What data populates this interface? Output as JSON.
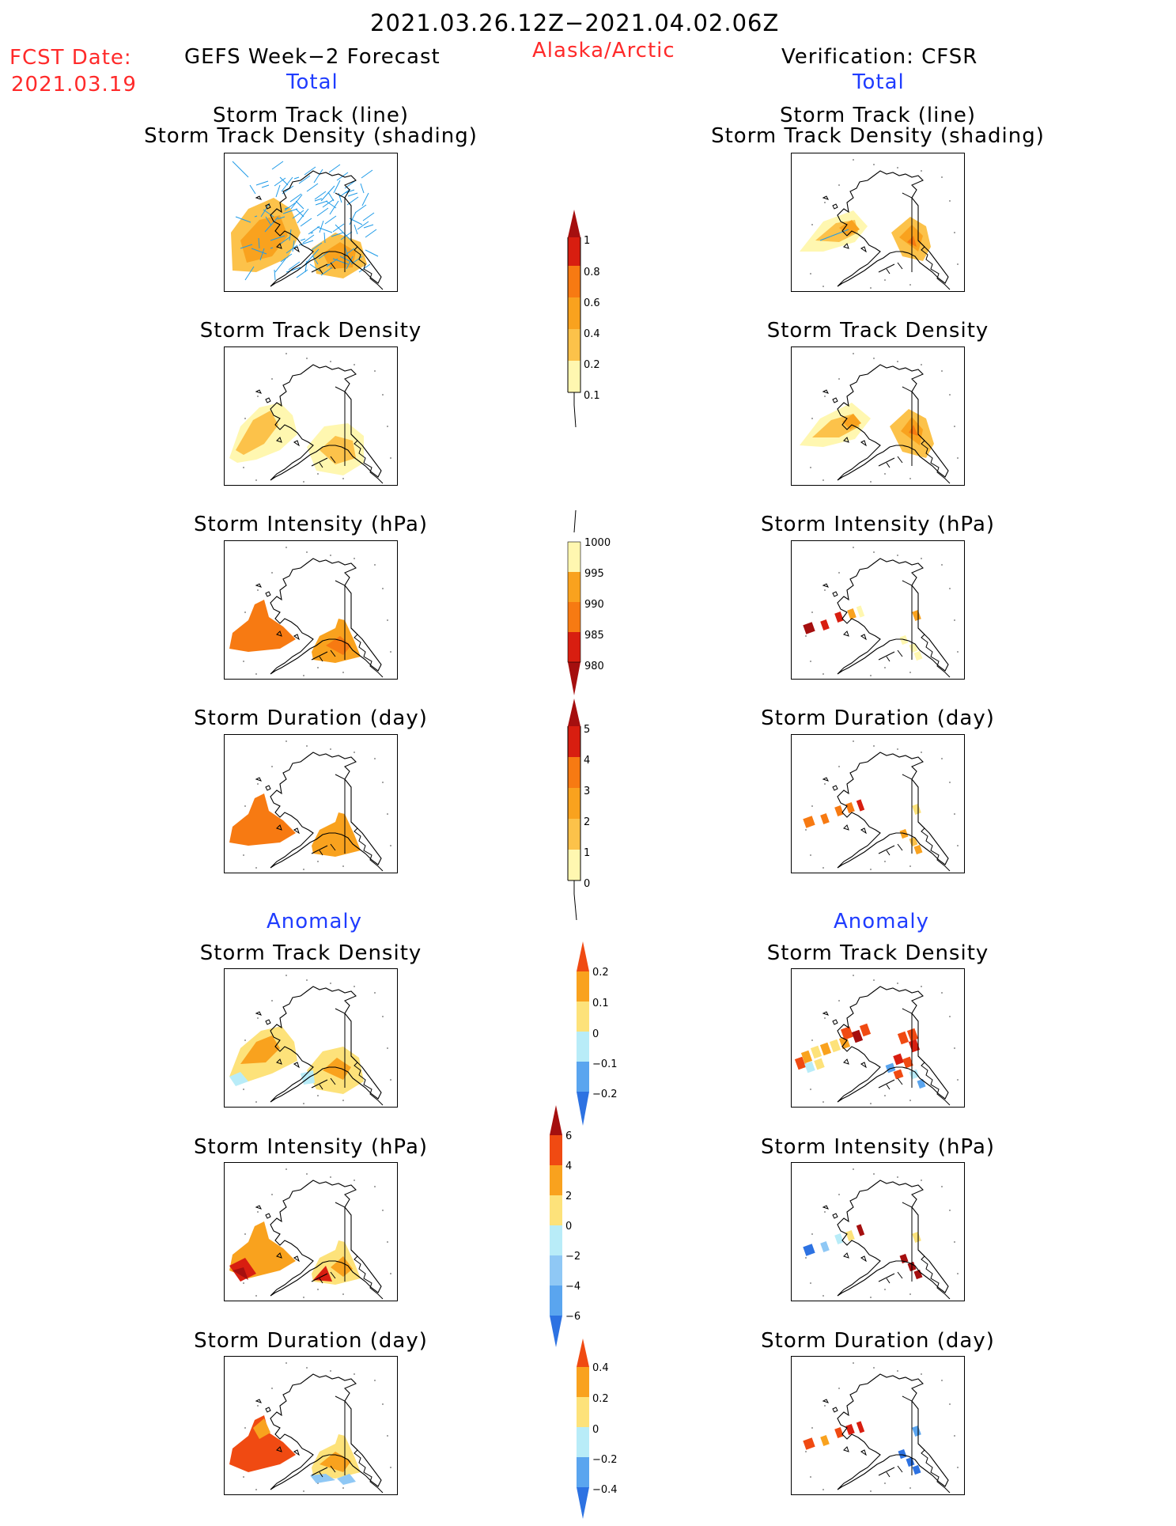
{
  "header": {
    "date_range": "2021.03.26.12Z−2021.04.02.06Z",
    "fcst_label": "FCST Date:",
    "fcst_date": "2021.03.19",
    "left_title": "GEFS Week−2 Forecast",
    "region": "Alaska/Arctic",
    "right_title": "Verification: CFSR",
    "total_left": "Total",
    "total_right": "Total",
    "anomaly_left": "Anomaly",
    "anomaly_right": "Anomaly"
  },
  "panel_titles": {
    "track_line_1": "Storm Track (line)",
    "track_line_2": "Storm Track Density (shading)",
    "density": "Storm Track Density",
    "intensity": "Storm Intensity (hPa)",
    "duration": "Storm Duration (day)"
  },
  "colors": {
    "pale_yellow": "#fff7b0",
    "light_yellow": "#fde27a",
    "light_orange": "#fcc24a",
    "orange": "#f9a21e",
    "dark_orange": "#f77a12",
    "red_orange": "#f04a12",
    "red": "#d81e10",
    "dark_red": "#a50f0f",
    "light_blue": "#b8ecf8",
    "blue1": "#8fc8f5",
    "blue2": "#5aa5ef",
    "blue3": "#2d72e2",
    "track_blue": "#1f9be8"
  },
  "chart_data": [
    {
      "type": "heatmap",
      "title": "Storm Track (line) / Storm Track Density (shading)",
      "source": "GEFS Week-2 Forecast",
      "colorbar": {
        "levels": [
          0.1,
          0.2,
          0.4,
          0.6,
          0.8,
          1
        ]
      }
    },
    {
      "type": "heatmap",
      "title": "Storm Track (line) / Storm Track Density (shading)",
      "source": "Verification: CFSR",
      "colorbar": {
        "levels": [
          0.1,
          0.2,
          0.4,
          0.6,
          0.8,
          1
        ]
      }
    },
    {
      "type": "heatmap",
      "title": "Storm Track Density",
      "source": "GEFS Week-2 Forecast",
      "colorbar": {
        "levels": [
          0.1,
          0.2,
          0.4,
          0.6,
          0.8,
          1
        ]
      }
    },
    {
      "type": "heatmap",
      "title": "Storm Track Density",
      "source": "Verification: CFSR",
      "colorbar": {
        "levels": [
          0.1,
          0.2,
          0.4,
          0.6,
          0.8,
          1
        ]
      }
    },
    {
      "type": "heatmap",
      "title": "Storm Intensity (hPa)",
      "source": "GEFS Week-2 Forecast",
      "colorbar": {
        "levels": [
          1000,
          995,
          990,
          985,
          980
        ]
      }
    },
    {
      "type": "heatmap",
      "title": "Storm Intensity (hPa)",
      "source": "Verification: CFSR",
      "colorbar": {
        "levels": [
          1000,
          995,
          990,
          985,
          980
        ]
      }
    },
    {
      "type": "heatmap",
      "title": "Storm Duration (day)",
      "source": "GEFS Week-2 Forecast",
      "colorbar": {
        "levels": [
          0,
          1,
          2,
          3,
          4,
          5
        ]
      }
    },
    {
      "type": "heatmap",
      "title": "Storm Duration (day)",
      "source": "Verification: CFSR",
      "colorbar": {
        "levels": [
          0,
          1,
          2,
          3,
          4,
          5
        ]
      }
    },
    {
      "type": "heatmap",
      "title": "Anomaly Storm Track Density",
      "source": "GEFS Week-2 Forecast",
      "colorbar": {
        "levels": [
          -0.2,
          -0.1,
          0,
          0.1,
          0.2
        ]
      }
    },
    {
      "type": "heatmap",
      "title": "Anomaly Storm Track Density",
      "source": "Verification: CFSR",
      "colorbar": {
        "levels": [
          -0.2,
          -0.1,
          0,
          0.1,
          0.2
        ]
      }
    },
    {
      "type": "heatmap",
      "title": "Anomaly Storm Intensity (hPa)",
      "source": "GEFS Week-2 Forecast",
      "colorbar": {
        "levels": [
          -6,
          -4,
          -2,
          0,
          2,
          4,
          6
        ]
      }
    },
    {
      "type": "heatmap",
      "title": "Anomaly Storm Intensity (hPa)",
      "source": "Verification: CFSR",
      "colorbar": {
        "levels": [
          -6,
          -4,
          -2,
          0,
          2,
          4,
          6
        ]
      }
    },
    {
      "type": "heatmap",
      "title": "Anomaly Storm Duration (day)",
      "source": "GEFS Week-2 Forecast",
      "colorbar": {
        "levels": [
          -0.4,
          -0.2,
          0,
          0.2,
          0.4
        ]
      }
    },
    {
      "type": "heatmap",
      "title": "Anomaly Storm Duration (day)",
      "source": "Verification: CFSR",
      "colorbar": {
        "levels": [
          -0.4,
          -0.2,
          0,
          0.2,
          0.4
        ]
      }
    }
  ],
  "colorbars": {
    "density": {
      "labels": [
        "1",
        "0.8",
        "0.6",
        "0.4",
        "0.2",
        "0.1"
      ]
    },
    "intensity": {
      "labels": [
        "1000",
        "995",
        "990",
        "985",
        "980"
      ]
    },
    "duration": {
      "labels": [
        "5",
        "4",
        "3",
        "2",
        "1",
        "0"
      ]
    },
    "anom_density": {
      "labels": [
        "0.2",
        "0.1",
        "0",
        "−0.1",
        "−0.2"
      ]
    },
    "anom_intensity": {
      "labels": [
        "6",
        "4",
        "2",
        "0",
        "−2",
        "−4",
        "−6"
      ]
    },
    "anom_duration": {
      "labels": [
        "0.4",
        "0.2",
        "0",
        "−0.2",
        "−0.4"
      ]
    }
  }
}
